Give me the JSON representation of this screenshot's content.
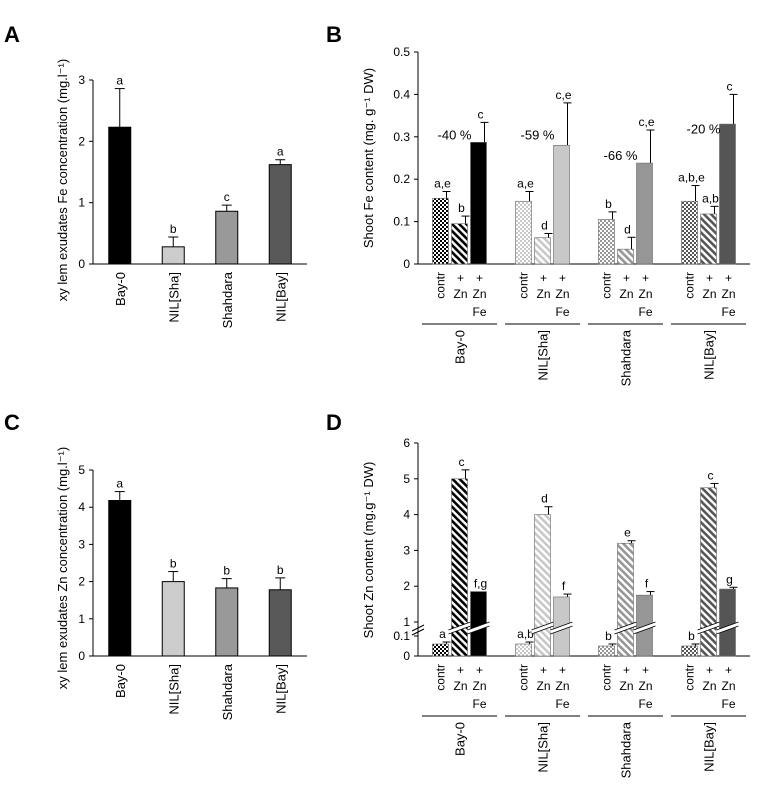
{
  "chart_data": [
    {
      "panel": "A",
      "type": "bar",
      "ylabel": "xy lem exudates Fe concentration (mg.l⁻¹)",
      "categories": [
        "Bay-0",
        "NIL[Sha]",
        "Shahdara",
        "NIL[Bay]"
      ],
      "values": [
        2.23,
        0.28,
        0.86,
        1.62
      ],
      "errors": [
        0.63,
        0.16,
        0.1,
        0.08
      ],
      "letters": [
        "a",
        "b",
        "c",
        "a"
      ],
      "colors": [
        "#000000",
        "#cccccc",
        "#999999",
        "#595959"
      ],
      "ylim": [
        0,
        3
      ],
      "yticks": [
        "0",
        "1",
        "2",
        "3"
      ]
    },
    {
      "panel": "B",
      "type": "bar",
      "ylabel": "Shoot Fe content (mg. g⁻¹ DW)",
      "ylim": [
        0,
        0.5
      ],
      "yticks": [
        "0",
        "0.1",
        "0.2",
        "0.3",
        "0.4",
        "0.5"
      ],
      "treatments": [
        "contr",
        "+ Zn",
        "+ Zn Fe"
      ],
      "groups": [
        {
          "name": "Bay-0",
          "values": [
            0.155,
            0.095,
            0.287
          ],
          "errors": [
            0.016,
            0.018,
            0.047
          ],
          "letters": [
            "a,e",
            "b",
            "c"
          ],
          "percent": "-40 %",
          "color": "#000000"
        },
        {
          "name": "NIL[Sha]",
          "values": [
            0.148,
            0.062,
            0.28
          ],
          "errors": [
            0.023,
            0.01,
            0.1
          ],
          "letters": [
            "a,e",
            "d",
            "c,e"
          ],
          "percent": "-59 %",
          "color": "#c8c8c8"
        },
        {
          "name": "Shahdara",
          "values": [
            0.105,
            0.035,
            0.238
          ],
          "errors": [
            0.018,
            0.028,
            0.078
          ],
          "letters": [
            "b",
            "d",
            "c,e"
          ],
          "percent": "-66 %",
          "color": "#969696"
        },
        {
          "name": "NIL[Bay]",
          "values": [
            0.148,
            0.118,
            0.33
          ],
          "errors": [
            0.037,
            0.018,
            0.07
          ],
          "letters": [
            "a,b,e",
            "a,b",
            "c"
          ],
          "percent": "-20 %",
          "color": "#555555"
        }
      ]
    },
    {
      "panel": "C",
      "type": "bar",
      "ylabel": "xy lem exudates Zn concentration (mg.l⁻¹)",
      "categories": [
        "Bay-0",
        "NIL[Sha]",
        "Shahdara",
        "NIL[Bay]"
      ],
      "values": [
        4.18,
        2.0,
        1.83,
        1.78
      ],
      "errors": [
        0.24,
        0.27,
        0.25,
        0.32
      ],
      "letters": [
        "a",
        "b",
        "b",
        "b"
      ],
      "colors": [
        "#000000",
        "#cccccc",
        "#999999",
        "#595959"
      ],
      "ylim": [
        0,
        5
      ],
      "yticks": [
        "0",
        "1",
        "2",
        "3",
        "4",
        "5"
      ]
    },
    {
      "panel": "D",
      "type": "bar",
      "ylabel": "Shoot Zn content (mg.g⁻¹ DW)",
      "axis_break": true,
      "ylim": [
        0,
        6
      ],
      "yticks": [
        "0",
        "0.1",
        "1",
        "2",
        "3",
        "4",
        "5",
        "6"
      ],
      "treatments": [
        "contr",
        "+ Zn",
        "+ Zn Fe"
      ],
      "groups": [
        {
          "name": "Bay-0",
          "values": [
            0.06,
            5.0,
            1.85
          ],
          "errors": [
            0.01,
            0.25,
            0
          ],
          "letters": [
            "a",
            "c",
            "f,g"
          ],
          "color": "#000000"
        },
        {
          "name": "NIL[Sha]",
          "values": [
            0.06,
            4.0,
            1.7
          ],
          "errors": [
            0.01,
            0.22,
            0.08
          ],
          "letters": [
            "a,b",
            "d",
            "f"
          ],
          "color": "#c8c8c8"
        },
        {
          "name": "Shahdara",
          "values": [
            0.05,
            3.2,
            1.75
          ],
          "errors": [
            0.01,
            0.07,
            0.1
          ],
          "letters": [
            "b",
            "e",
            "f"
          ],
          "color": "#969696"
        },
        {
          "name": "NIL[Bay]",
          "values": [
            0.05,
            4.75,
            1.92
          ],
          "errors": [
            0.01,
            0.12,
            0.05
          ],
          "letters": [
            "b",
            "c",
            "g"
          ],
          "color": "#555555"
        }
      ]
    }
  ]
}
